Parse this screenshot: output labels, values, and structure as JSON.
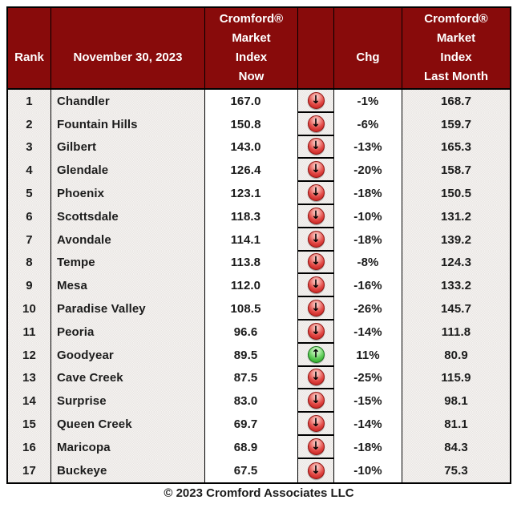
{
  "header": {
    "rank": "Rank",
    "date": "November 30, 2023",
    "index_now": "Cromford®\nMarket\nIndex\nNow",
    "trend": "",
    "chg": "Chg",
    "index_last_month": "Cromford®\nMarket\nIndex\nLast Month"
  },
  "chart_data": {
    "type": "table",
    "title": "Cromford® Market Index",
    "date": "November 30, 2023",
    "columns": [
      "Rank",
      "November 30, 2023",
      "Cromford® Market Index Now",
      "Trend",
      "Chg",
      "Cromford® Market Index Last Month"
    ],
    "rows": [
      {
        "rank": "1",
        "city": "Chandler",
        "now": "167.0",
        "trend": "down",
        "chg": "-1%",
        "last": "168.7"
      },
      {
        "rank": "2",
        "city": "Fountain Hills",
        "now": "150.8",
        "trend": "down",
        "chg": "-6%",
        "last": "159.7"
      },
      {
        "rank": "3",
        "city": "Gilbert",
        "now": "143.0",
        "trend": "down",
        "chg": "-13%",
        "last": "165.3"
      },
      {
        "rank": "4",
        "city": "Glendale",
        "now": "126.4",
        "trend": "down",
        "chg": "-20%",
        "last": "158.7"
      },
      {
        "rank": "5",
        "city": "Phoenix",
        "now": "123.1",
        "trend": "down",
        "chg": "-18%",
        "last": "150.5"
      },
      {
        "rank": "6",
        "city": "Scottsdale",
        "now": "118.3",
        "trend": "down",
        "chg": "-10%",
        "last": "131.2"
      },
      {
        "rank": "7",
        "city": "Avondale",
        "now": "114.1",
        "trend": "down",
        "chg": "-18%",
        "last": "139.2"
      },
      {
        "rank": "8",
        "city": "Tempe",
        "now": "113.8",
        "trend": "down",
        "chg": "-8%",
        "last": "124.3"
      },
      {
        "rank": "9",
        "city": "Mesa",
        "now": "112.0",
        "trend": "down",
        "chg": "-16%",
        "last": "133.2"
      },
      {
        "rank": "10",
        "city": "Paradise Valley",
        "now": "108.5",
        "trend": "down",
        "chg": "-26%",
        "last": "145.7"
      },
      {
        "rank": "11",
        "city": "Peoria",
        "now": "96.6",
        "trend": "down",
        "chg": "-14%",
        "last": "111.8"
      },
      {
        "rank": "12",
        "city": "Goodyear",
        "now": "89.5",
        "trend": "up",
        "chg": "11%",
        "last": "80.9"
      },
      {
        "rank": "13",
        "city": "Cave Creek",
        "now": "87.5",
        "trend": "down",
        "chg": "-25%",
        "last": "115.9"
      },
      {
        "rank": "14",
        "city": "Surprise",
        "now": "83.0",
        "trend": "down",
        "chg": "-15%",
        "last": "98.1"
      },
      {
        "rank": "15",
        "city": "Queen Creek",
        "now": "69.7",
        "trend": "down",
        "chg": "-14%",
        "last": "81.1"
      },
      {
        "rank": "16",
        "city": "Maricopa",
        "now": "68.9",
        "trend": "down",
        "chg": "-18%",
        "last": "84.3"
      },
      {
        "rank": "17",
        "city": "Buckeye",
        "now": "67.5",
        "trend": "down",
        "chg": "-10%",
        "last": "75.3"
      }
    ]
  },
  "icons": {
    "down": "red-circle-down-arrow",
    "up": "green-circle-up-arrow"
  },
  "colors": {
    "header_bg": "#880b0b",
    "header_text": "#ffffff",
    "body_text": "#1c1c1c",
    "grid_border": "#000000",
    "shaded_cell_bg": "#efedeb",
    "down_icon": "#d53530",
    "up_icon": "#46bd40"
  },
  "footer": {
    "copyright": "© 2023 Cromford Associates LLC"
  }
}
